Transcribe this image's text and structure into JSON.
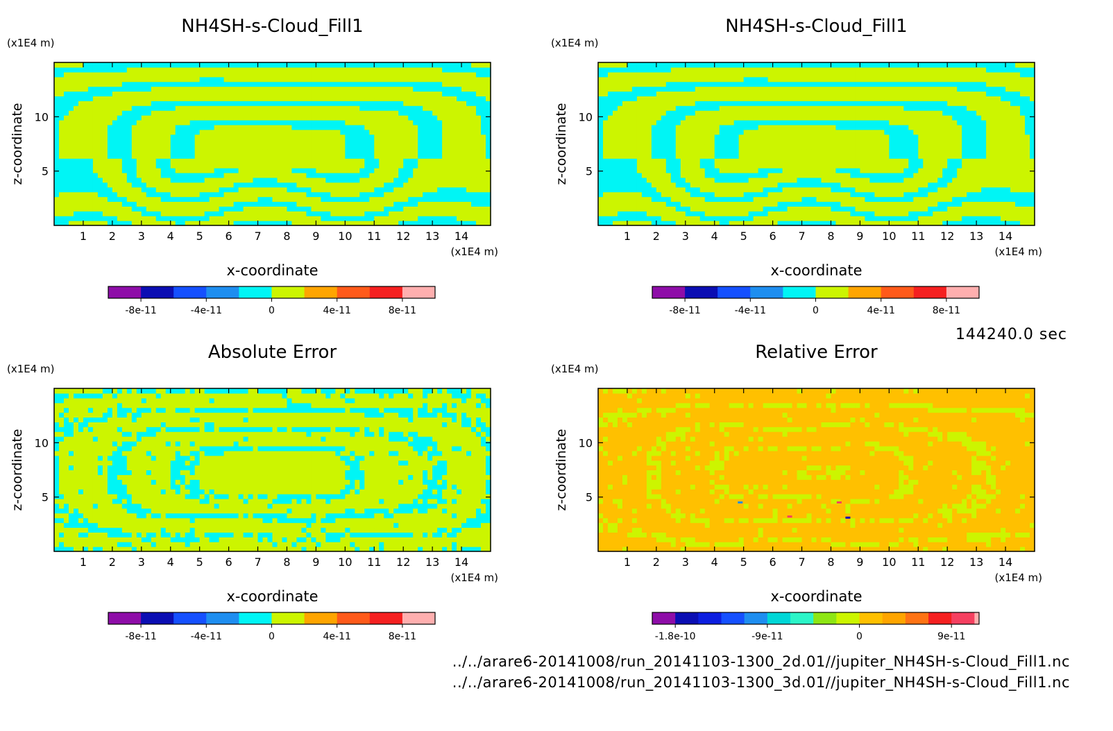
{
  "timestamp": "144240.0 sec",
  "files": [
    "../../arare6-20141008/run_20141103-1300_2d.01//jupiter_NH4SH-s-Cloud_Fill1.nc",
    "../../arare6-20141008/run_20141103-1300_3d.01//jupiter_NH4SH-s-Cloud_Fill1.nc"
  ],
  "chart_data": [
    {
      "type": "heatmap",
      "title": "NH4SH-s-Cloud_Fill1",
      "xlabel": "x-coordinate",
      "ylabel": "z-coordinate",
      "x_unit": "(x1E4 m)",
      "y_unit": "(x1E4 m)",
      "xlim": [
        0,
        15
      ],
      "ylim": [
        0,
        15
      ],
      "x_ticks": [
        1,
        2,
        3,
        4,
        5,
        6,
        7,
        8,
        9,
        10,
        11,
        12,
        13,
        14
      ],
      "y_ticks": [
        5,
        10
      ],
      "dominant_bins": [
        0,
        1e-11
      ],
      "pattern": "cloud",
      "colorbar": {
        "bins": [
          -1e-10,
          -8e-11,
          -6e-11,
          -4e-11,
          -2e-11,
          0,
          2e-11,
          4e-11,
          6e-11,
          8e-11,
          1e-10
        ],
        "colors": [
          "#8e0da8",
          "#0b0eb3",
          "#1550ff",
          "#1e8ef0",
          "#00f5f5",
          "#ccf500",
          "#ffa500",
          "#ff5a1a",
          "#f52020",
          "#ffafaf"
        ],
        "tick_values": [
          -8e-11,
          -4e-11,
          0,
          4e-11,
          8e-11
        ],
        "tick_labels": [
          "-8e-11",
          "-4e-11",
          "0",
          "4e-11",
          "8e-11"
        ]
      }
    },
    {
      "type": "heatmap",
      "title": "NH4SH-s-Cloud_Fill1",
      "xlabel": "x-coordinate",
      "ylabel": "z-coordinate",
      "x_unit": "(x1E4 m)",
      "y_unit": "(x1E4 m)",
      "xlim": [
        0,
        15
      ],
      "ylim": [
        0,
        15
      ],
      "x_ticks": [
        1,
        2,
        3,
        4,
        5,
        6,
        7,
        8,
        9,
        10,
        11,
        12,
        13,
        14
      ],
      "y_ticks": [
        5,
        10
      ],
      "dominant_bins": [
        0,
        1e-11
      ],
      "pattern": "cloud",
      "colorbar": {
        "bins": [
          -1e-10,
          -8e-11,
          -6e-11,
          -4e-11,
          -2e-11,
          0,
          2e-11,
          4e-11,
          6e-11,
          8e-11,
          1e-10
        ],
        "colors": [
          "#8e0da8",
          "#0b0eb3",
          "#1550ff",
          "#1e8ef0",
          "#00f5f5",
          "#ccf500",
          "#ffa500",
          "#ff5a1a",
          "#f52020",
          "#ffafaf"
        ],
        "tick_values": [
          -8e-11,
          -4e-11,
          0,
          4e-11,
          8e-11
        ],
        "tick_labels": [
          "-8e-11",
          "-4e-11",
          "0",
          "4e-11",
          "8e-11"
        ]
      }
    },
    {
      "type": "heatmap",
      "title": "Absolute Error",
      "xlabel": "x-coordinate",
      "ylabel": "z-coordinate",
      "x_unit": "(x1E4 m)",
      "y_unit": "(x1E4 m)",
      "xlim": [
        0,
        15
      ],
      "ylim": [
        0,
        15
      ],
      "x_ticks": [
        1,
        2,
        3,
        4,
        5,
        6,
        7,
        8,
        9,
        10,
        11,
        12,
        13,
        14
      ],
      "y_ticks": [
        5,
        10
      ],
      "dominant_bins": [
        0,
        1e-11
      ],
      "pattern": "abs",
      "colorbar": {
        "bins": [
          -1e-10,
          -8e-11,
          -6e-11,
          -4e-11,
          -2e-11,
          0,
          2e-11,
          4e-11,
          6e-11,
          8e-11,
          1e-10
        ],
        "colors": [
          "#8e0da8",
          "#0b0eb3",
          "#1550ff",
          "#1e8ef0",
          "#00f5f5",
          "#ccf500",
          "#ffa500",
          "#ff5a1a",
          "#f52020",
          "#ffafaf"
        ],
        "tick_values": [
          -8e-11,
          -4e-11,
          0,
          4e-11,
          8e-11
        ],
        "tick_labels": [
          "-8e-11",
          "-4e-11",
          "0",
          "4e-11",
          "8e-11"
        ]
      }
    },
    {
      "type": "heatmap",
      "title": "Relative Error",
      "xlabel": "x-coordinate",
      "ylabel": "z-coordinate",
      "x_unit": "(x1E4 m)",
      "y_unit": "(x1E4 m)",
      "xlim": [
        0,
        15
      ],
      "ylim": [
        0,
        15
      ],
      "x_ticks": [
        1,
        2,
        3,
        4,
        5,
        6,
        7,
        8,
        9,
        10,
        11,
        12,
        13,
        14
      ],
      "y_ticks": [
        5,
        10
      ],
      "dominant_bins": [
        0,
        2e-11
      ],
      "pattern": "rel",
      "colorbar": {
        "bins": [
          -2.025e-10,
          -1.8e-10,
          -1.575e-10,
          -1.35e-10,
          -1.125e-10,
          -9e-11,
          -6.75e-11,
          -4.5e-11,
          -2.25e-11,
          0,
          2.25e-11,
          4.5e-11,
          6.75e-11,
          9e-11,
          1.125e-10,
          1.17e-10
        ],
        "colors": [
          "#8e0da8",
          "#0b0eb3",
          "#0c1ee0",
          "#1550ff",
          "#1e8ef0",
          "#00d7d7",
          "#2cf5c8",
          "#8ee614",
          "#ccf500",
          "#ffc000",
          "#ffa500",
          "#ff7314",
          "#f52020",
          "#f54060",
          "#ffafaf"
        ],
        "tick_values": [
          -1.8e-10,
          -9e-11,
          0,
          9e-11
        ],
        "tick_labels": [
          "-1.8e-10",
          "-9e-11",
          "0",
          "9e-11"
        ]
      }
    }
  ]
}
